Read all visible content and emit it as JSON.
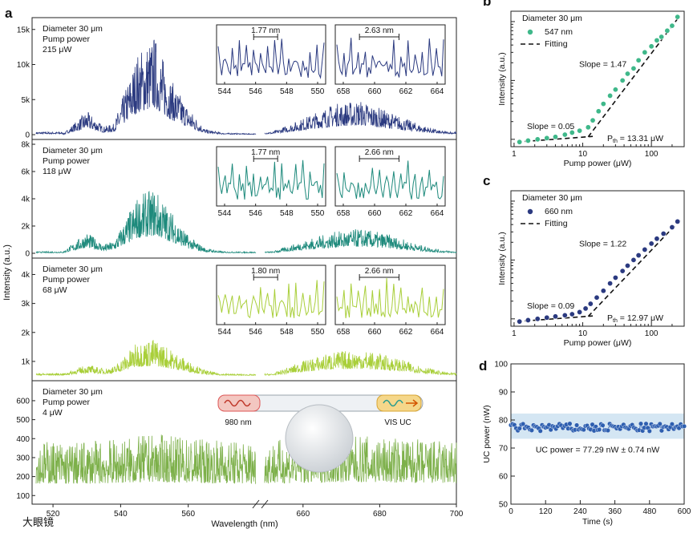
{
  "watermark": "大眼镜",
  "chart_data": [
    {
      "panel": "a",
      "type": "line",
      "xlabel": "Wavelength (nm)",
      "ylabel": "Intensity (a.u.)",
      "xticks": [
        "520",
        "540",
        "560",
        "660",
        "680",
        "700"
      ],
      "x_break": true,
      "rows": [
        {
          "color": "#2b3a80",
          "legend": [
            "Diameter 30 μm",
            "Pump power",
            "215 μW"
          ],
          "yticks": [
            "0",
            "5k",
            "10k",
            "15k"
          ],
          "ylim": [
            0,
            16000
          ],
          "envelope": [
            [
              523,
              80
            ],
            [
              530,
              2600
            ],
            [
              535,
              900
            ],
            [
              538,
              1200
            ],
            [
              545,
              9000
            ],
            [
              550,
              11000
            ],
            [
              555,
              6000
            ],
            [
              560,
              3000
            ],
            [
              565,
              600
            ],
            [
              570,
              200
            ],
            [
              580,
              100
            ],
            [
              652,
              300
            ],
            [
              660,
              1800
            ],
            [
              668,
              3400
            ],
            [
              675,
              3800
            ],
            [
              682,
              2600
            ],
            [
              690,
              1200
            ],
            [
              696,
              400
            ],
            [
              700,
              300
            ]
          ],
          "insets": [
            {
              "ticks": [
                "544",
                "546",
                "548",
                "550"
              ],
              "peak_spacing": "1.77 nm"
            },
            {
              "ticks": [
                "658",
                "660",
                "662",
                "664"
              ],
              "peak_spacing": "2.63 nm"
            }
          ]
        },
        {
          "color": "#1e8a7c",
          "legend": [
            "Diameter 30 μm",
            "Pump power",
            "118 μW"
          ],
          "yticks": [
            "0",
            "2k",
            "4k",
            "6k",
            "8k"
          ],
          "ylim": [
            0,
            8000
          ],
          "envelope": [
            [
              523,
              100
            ],
            [
              530,
              1200
            ],
            [
              535,
              500
            ],
            [
              538,
              700
            ],
            [
              545,
              3200
            ],
            [
              550,
              3700
            ],
            [
              555,
              2400
            ],
            [
              560,
              1000
            ],
            [
              565,
              300
            ],
            [
              570,
              100
            ],
            [
              580,
              80
            ],
            [
              652,
              100
            ],
            [
              660,
              700
            ],
            [
              668,
              1200
            ],
            [
              675,
              1400
            ],
            [
              682,
              1100
            ],
            [
              690,
              500
            ],
            [
              696,
              180
            ],
            [
              700,
              100
            ]
          ],
          "insets": [
            {
              "ticks": [
                "544",
                "546",
                "548",
                "550"
              ],
              "peak_spacing": "1.77 nm"
            },
            {
              "ticks": [
                "658",
                "660",
                "662",
                "664"
              ],
              "peak_spacing": "2.66 nm"
            }
          ]
        },
        {
          "color": "#a9cf3a",
          "legend": [
            "Diameter 30 μm",
            "Pump power",
            "68 μW"
          ],
          "yticks": [
            "1k",
            "2k",
            "3k",
            "4k"
          ],
          "ylim": [
            500,
            4400
          ],
          "envelope": [
            [
              523,
              560
            ],
            [
              530,
              800
            ],
            [
              535,
              700
            ],
            [
              538,
              750
            ],
            [
              545,
              1400
            ],
            [
              550,
              1500
            ],
            [
              555,
              1200
            ],
            [
              560,
              900
            ],
            [
              565,
              650
            ],
            [
              570,
              560
            ],
            [
              580,
              540
            ],
            [
              652,
              560
            ],
            [
              660,
              900
            ],
            [
              668,
              1150
            ],
            [
              675,
              1200
            ],
            [
              682,
              1050
            ],
            [
              690,
              800
            ],
            [
              696,
              620
            ],
            [
              700,
              570
            ]
          ],
          "insets": [
            {
              "ticks": [
                "544",
                "546",
                "548",
                "550"
              ],
              "peak_spacing": "1.80 nm"
            },
            {
              "ticks": [
                "658",
                "660",
                "662",
                "664"
              ],
              "peak_spacing": "2.66 nm"
            }
          ]
        },
        {
          "color": "#7db04a",
          "legend": [
            "Diameter 30 μm",
            "Pump power",
            "4 μW"
          ],
          "yticks": [
            "100",
            "200",
            "300",
            "400",
            "500",
            "600"
          ],
          "ylim": [
            80,
            680
          ],
          "envelope": [
            [
              523,
              310
            ],
            [
              535,
              320
            ],
            [
              545,
              335
            ],
            [
              550,
              345
            ],
            [
              560,
              330
            ],
            [
              580,
              315
            ],
            [
              652,
              320
            ],
            [
              665,
              335
            ],
            [
              675,
              340
            ],
            [
              690,
              325
            ],
            [
              700,
              318
            ]
          ],
          "schematic": {
            "left": "980 nm",
            "right": "VIS UC"
          }
        }
      ]
    },
    {
      "panel": "b",
      "type": "scatter",
      "scale": "log-log",
      "color": "#3fb88a",
      "legend": [
        "Diameter 30 μm",
        "547 nm",
        "Fitting"
      ],
      "xlabel": "Pump power (μW)",
      "ylabel": "Intensity (a.u.)",
      "xticks": [
        "1",
        "10",
        "100"
      ],
      "points": [
        [
          1.2,
          0.9
        ],
        [
          1.6,
          0.95
        ],
        [
          2.2,
          1.0
        ],
        [
          3.0,
          1.05
        ],
        [
          4.0,
          1.1
        ],
        [
          5.5,
          1.2
        ],
        [
          7,
          1.3
        ],
        [
          9,
          1.4
        ],
        [
          12,
          1.6
        ],
        [
          14,
          2.1
        ],
        [
          17,
          3
        ],
        [
          20,
          4
        ],
        [
          25,
          5.5
        ],
        [
          30,
          7
        ],
        [
          38,
          10
        ],
        [
          45,
          13
        ],
        [
          55,
          16
        ],
        [
          65,
          22
        ],
        [
          80,
          30
        ],
        [
          100,
          38
        ],
        [
          120,
          48
        ],
        [
          140,
          55
        ],
        [
          170,
          70
        ],
        [
          200,
          85
        ],
        [
          240,
          120
        ]
      ],
      "slopes": [
        "Slope = 0.05",
        "Slope = 1.47"
      ],
      "threshold": "P_th = 13.31 μW"
    },
    {
      "panel": "c",
      "type": "scatter",
      "scale": "log-log",
      "color": "#2b3a80",
      "legend": [
        "Diameter 30 μm",
        "660 nm",
        "Fitting"
      ],
      "xlabel": "Pump power (μW)",
      "ylabel": "Intensity (a.u.)",
      "xticks": [
        "1",
        "10",
        "100"
      ],
      "points": [
        [
          1.2,
          0.9
        ],
        [
          1.6,
          0.95
        ],
        [
          2.2,
          1.0
        ],
        [
          3.0,
          1.05
        ],
        [
          4.0,
          1.1
        ],
        [
          5.5,
          1.15
        ],
        [
          7,
          1.2
        ],
        [
          9,
          1.3
        ],
        [
          11,
          1.5
        ],
        [
          13,
          1.8
        ],
        [
          16,
          2.3
        ],
        [
          20,
          3
        ],
        [
          25,
          4
        ],
        [
          30,
          5
        ],
        [
          38,
          6.5
        ],
        [
          45,
          8
        ],
        [
          55,
          10
        ],
        [
          65,
          12
        ],
        [
          80,
          15
        ],
        [
          100,
          19
        ],
        [
          120,
          23
        ],
        [
          150,
          28
        ],
        [
          200,
          36
        ],
        [
          240,
          45
        ]
      ],
      "slopes": [
        "Slope = 0.09",
        "Slope = 1.22"
      ],
      "threshold": "P_th = 12.97 μW"
    },
    {
      "panel": "d",
      "type": "line",
      "color": "#2e5fb0",
      "xlabel": "Time (s)",
      "ylabel": "UC power (nW)",
      "xticks": [
        "0",
        "120",
        "240",
        "360",
        "480",
        "600"
      ],
      "yticks": [
        "50",
        "60",
        "70",
        "80",
        "90",
        "100"
      ],
      "xlim": [
        0,
        600
      ],
      "ylim": [
        50,
        100
      ],
      "band": [
        73.3,
        82.3
      ],
      "mean": 77.29,
      "std": 0.74,
      "annotation": "UC power = 77.29 nW ± 0.74 nW"
    }
  ]
}
